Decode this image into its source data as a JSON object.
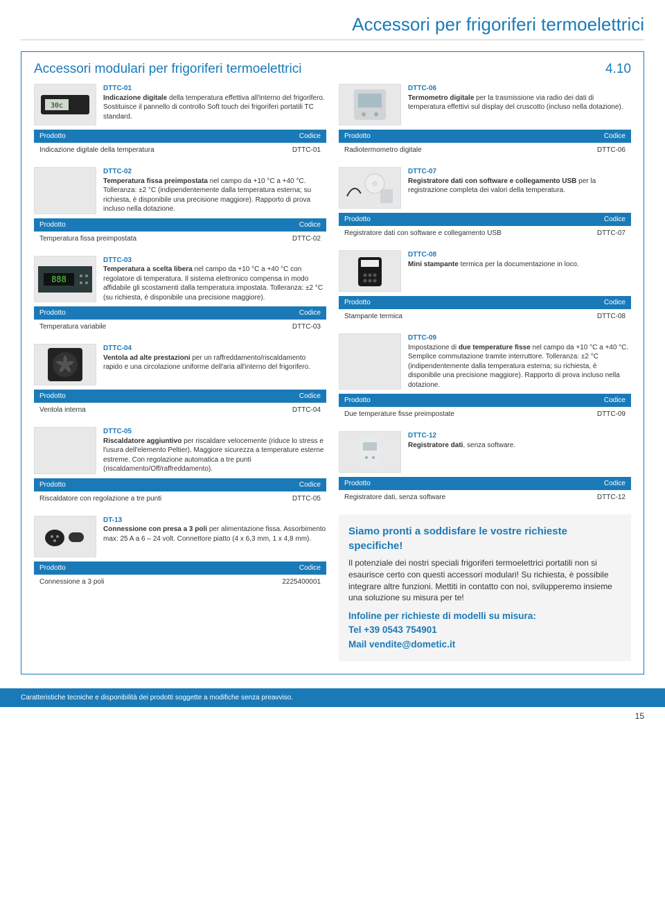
{
  "pageTitle": "Accessori per frigoriferi termoelettrici",
  "sectionTitle": "Accessori modulari per frigoriferi termoelettrici",
  "sectionNumber": "4.10",
  "tableHeaders": {
    "product": "Prodotto",
    "code": "Codice"
  },
  "left": [
    {
      "code": "DTTC-01",
      "boldIntro": "Indicazione digitale",
      "text": " della temperatura effettiva all'interno del frigorifero. Sostituisce il pannello di controllo Soft touch dei frigoriferi portatili TC standard.",
      "product": "Indicazione digitale della temperatura",
      "pcode": "DTTC-01"
    },
    {
      "code": "DTTC-02",
      "boldIntro": "Temperatura fissa preimpostata",
      "text": " nel campo da +10 °C a +40 °C. Tolleranza: ±2 °C (indipendentemente dalla temperatura esterna; su richiesta, è disponibile una precisione maggiore). Rapporto di prova incluso nella dotazione.",
      "product": "Temperatura fissa preimpostata",
      "pcode": "DTTC-02"
    },
    {
      "code": "DTTC-03",
      "boldIntro": "Temperatura a scelta libera",
      "text": " nel campo da +10 °C a +40 °C con regolatore di temperatura. Il sistema elettronico compensa in modo affidabile gli scostamenti dalla temperatura impostata. Tolleranza: ±2 °C (su richiesta, è disponibile una precisione maggiore).",
      "product": "Temperatura variabile",
      "pcode": "DTTC-03"
    },
    {
      "code": "DTTC-04",
      "boldIntro": "Ventola ad alte prestazioni",
      "text": " per un raffreddamento/riscaldamento rapido e una circolazione uniforme dell'aria all'interno del frigorifero.",
      "product": "Ventola interna",
      "pcode": "DTTC-04"
    },
    {
      "code": "DTTC-05",
      "boldIntro": "Riscaldatore aggiuntivo",
      "text": " per riscaldare velocemente (riduce lo stress e l'usura dell'elemento Peltier). Maggiore sicurezza a temperature esterne estreme. Con regolazione automatica a tre punti (riscaldamento/Off/raffreddamento).",
      "product": "Riscaldatore con regolazione a tre punti",
      "pcode": "DTTC-05"
    },
    {
      "code": "DT-13",
      "boldIntro": "Connessione con presa a 3 poli",
      "text": " per alimentazione fissa. Assorbimento max: 25 A a 6 – 24 volt. Connettore piatto (4 x 6,3 mm, 1 x 4,8 mm).",
      "product": "Connessione a 3 poli",
      "pcode": "2225400001"
    }
  ],
  "right": [
    {
      "code": "DTTC-06",
      "boldIntro": "Termometro digitale",
      "text": " per la trasmissione via radio dei dati di temperatura effettivi sul display del cruscotto (incluso nella dotazione).",
      "product": "Radiotermometro digitale",
      "pcode": "DTTC-06"
    },
    {
      "code": "DTTC-07",
      "boldIntro": "Registratore dati con software e collegamento USB",
      "text": " per la registrazione completa dei valori della temperatura.",
      "product": "Registratore dati con software e collegamento USB",
      "pcode": "DTTC-07"
    },
    {
      "code": "DTTC-08",
      "boldIntro": "Mini stampante",
      "text": " termica per la documentazione in loco.",
      "product": "Stampante termica",
      "pcode": "DTTC-08"
    },
    {
      "code": "DTTC-09",
      "boldIntro": "",
      "text": "Impostazione di ",
      "boldMid": "due temperature fisse",
      "textAfter": " nel campo da +10 °C a +40 °C. Semplice commutazione tramite interruttore. Tolleranza: ±2 °C (indipendentemente dalla temperatura esterna; su richiesta, è disponibile una precisione maggiore). Rapporto di prova incluso nella dotazione.",
      "product": "Due temperature fisse preimpostate",
      "pcode": "DTTC-09"
    },
    {
      "code": "DTTC-12",
      "boldIntro": "Registratore dati",
      "text": ", senza software.",
      "product": "Registratore dati, senza software",
      "pcode": "DTTC-12"
    }
  ],
  "noteBox": {
    "title": "Siamo pronti a soddisfare le vostre richieste specifiche!",
    "body": "Il potenziale dei nostri speciali frigoriferi termoelettrici portatili non si esaurisce certo con questi accessori modulari! Su richiesta, è possibile integrare altre funzioni. Mettiti in contatto con noi, svilupperemo insieme una soluzione su misura per te!",
    "contactTitle": "Infoline per richieste di modelli su misura:",
    "phone": "Tel +39 0543 754901",
    "mail": "Mail vendite@dometic.it"
  },
  "footerText": "Caratteristiche tecniche e disponibilità dei prodotti soggette a modifiche senza preavviso.",
  "pageNumber": "15",
  "colors": {
    "accent": "#1a7ab8",
    "grayBg": "#f4f4f4"
  }
}
